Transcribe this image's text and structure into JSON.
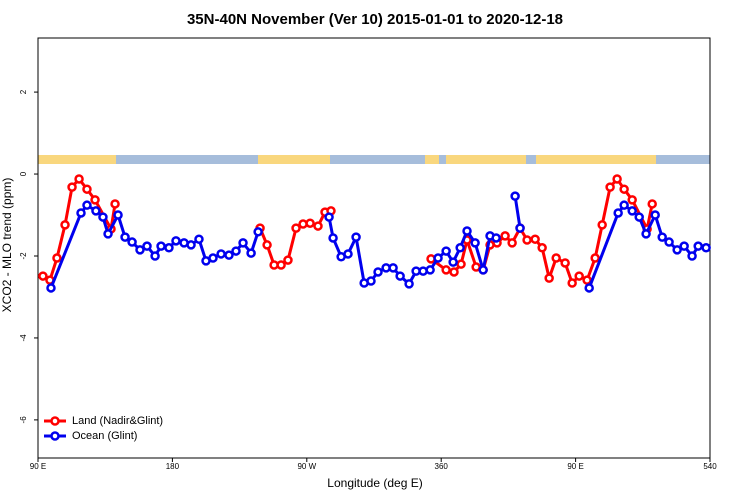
{
  "chart_data": {
    "type": "line",
    "title": "35N-40N November (Ver 10)   2015-01-01 to 2020-12-18",
    "x_label": "Longitude (deg E)",
    "y_label": "XCO2 - MLO trend (ppm)",
    "xlim": [
      90,
      540
    ],
    "ylim": [
      -6.93,
      3.32
    ],
    "xticks": [
      {
        "value": 90,
        "label": "90 E"
      },
      180,
      {
        "value": 270,
        "label": "90 W"
      },
      360,
      {
        "value": 450,
        "label": "90 E"
      },
      540
    ],
    "yticks": [
      -6,
      -4,
      -2,
      0,
      2
    ],
    "legend": "bottomleft",
    "series": [
      {
        "name": "Land (Nadir&Glint)",
        "color": "#ff0000",
        "x": [
          93.3,
          98.0,
          102.7,
          108.1,
          112.8,
          117.5,
          122.8,
          128.2,
          138.9,
          141.6,
          null,
          238.7,
          243.4,
          248.1,
          252.8,
          257.4,
          262.8,
          267.5,
          272.2,
          277.5,
          282.2,
          286.2,
          null,
          353.2,
          363.3,
          368.6,
          373.3,
          377.3,
          383.4,
          388.1,
          392.7,
          397.4,
          402.8,
          407.5,
          412.8,
          417.5,
          422.9,
          427.6,
          432.3,
          437.0,
          443.0,
          447.7,
          452.4,
          457.7,
          463.1,
          467.8,
          473.1,
          477.8,
          482.5,
          487.9,
          497.9,
          501.3
        ],
        "values": [
          -2.49,
          -2.59,
          -2.05,
          -1.24,
          -0.32,
          -0.12,
          -0.37,
          -0.63,
          -1.34,
          -0.73,
          null,
          -1.32,
          -1.73,
          -2.22,
          -2.22,
          -2.1,
          -1.32,
          -1.22,
          -1.2,
          -1.27,
          -0.93,
          -0.9,
          null,
          -2.07,
          -2.34,
          -2.39,
          -2.2,
          -1.61,
          -2.27,
          -2.34,
          -1.73,
          -1.68,
          -1.51,
          -1.68,
          -1.32,
          -1.61,
          -1.59,
          -1.8,
          -2.54,
          -2.05,
          -2.17,
          -2.66,
          -2.49,
          -2.59,
          -2.05,
          -1.24,
          -0.32,
          -0.12,
          -0.37,
          -0.63,
          -1.34,
          -0.73
        ]
      },
      {
        "name": "Ocean (Glint)",
        "color": "#0000ee",
        "x": [
          98.7,
          118.8,
          122.8,
          128.8,
          133.5,
          136.9,
          143.6,
          148.3,
          153.0,
          158.3,
          163.0,
          168.4,
          172.4,
          177.7,
          182.4,
          187.8,
          192.5,
          197.8,
          202.5,
          207.2,
          212.6,
          217.9,
          222.6,
          227.3,
          232.7,
          237.4,
          null,
          284.9,
          287.6,
          293.0,
          297.6,
          303.0,
          308.4,
          313.0,
          317.7,
          323.1,
          327.8,
          332.5,
          338.5,
          343.2,
          347.9,
          352.6,
          357.9,
          363.3,
          368.0,
          372.7,
          377.3,
          382.7,
          388.1,
          392.7,
          396.8,
          null,
          409.5,
          412.8,
          null,
          459.1,
          478.5,
          482.5,
          487.9,
          492.6,
          497.2,
          503.3,
          508.0,
          512.6,
          518.0,
          522.7,
          528.0,
          532.1,
          537.4
        ],
        "values": [
          -2.78,
          -0.95,
          -0.76,
          -0.9,
          -1.05,
          -1.46,
          -1.0,
          -1.54,
          -1.66,
          -1.85,
          -1.76,
          -2.0,
          -1.76,
          -1.8,
          -1.63,
          -1.68,
          -1.73,
          -1.59,
          -2.12,
          -2.05,
          -1.95,
          -1.98,
          -1.88,
          -1.68,
          -1.93,
          -1.41,
          null,
          -1.05,
          -1.56,
          -2.02,
          -1.95,
          -1.54,
          -2.66,
          -2.61,
          -2.39,
          -2.29,
          -2.29,
          -2.49,
          -2.68,
          -2.37,
          -2.37,
          -2.34,
          -2.05,
          -1.88,
          -2.15,
          -1.8,
          -1.39,
          -1.68,
          -2.34,
          -1.51,
          -1.56,
          null,
          -0.54,
          -1.32,
          null,
          -2.78,
          -0.95,
          -0.76,
          -0.9,
          -1.05,
          -1.46,
          -1.0,
          -1.54,
          -1.66,
          -1.85,
          -1.76,
          -2.0,
          -1.76,
          -1.8
        ]
      }
    ]
  }
}
